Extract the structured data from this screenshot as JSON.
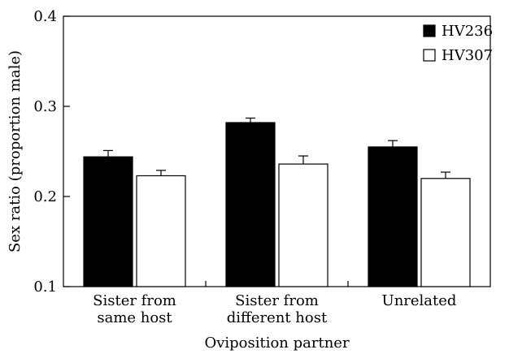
{
  "chart_data": {
    "type": "bar",
    "title": "",
    "xlabel": "Oviposition partner",
    "ylabel": "Sex ratio (proportion male)",
    "ylim": [
      0.1,
      0.4
    ],
    "yticks": [
      "0.1",
      "0.2",
      "0.3",
      "0.4"
    ],
    "ytick_values": [
      0.1,
      0.2,
      0.3,
      0.4
    ],
    "categories": [
      [
        "Sister from",
        "same host"
      ],
      [
        "Sister from",
        "different host"
      ],
      [
        "Unrelated"
      ]
    ],
    "series": [
      {
        "name": "HV236",
        "color": "#000000",
        "values": [
          0.244,
          0.282,
          0.255
        ],
        "errors": [
          0.007,
          0.005,
          0.007
        ]
      },
      {
        "name": "HV307",
        "color": "#ffffff",
        "values": [
          0.223,
          0.236,
          0.22
        ],
        "errors": [
          0.006,
          0.009,
          0.007
        ]
      }
    ],
    "legend_position": "top-right",
    "grid": false
  }
}
